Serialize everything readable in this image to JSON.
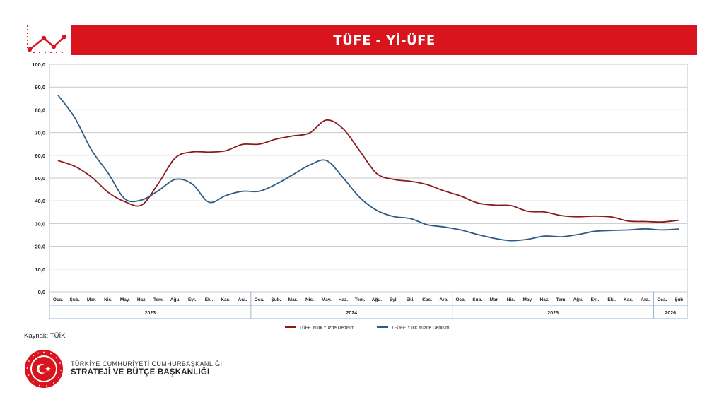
{
  "header": {
    "title": "TÜFE - Yİ-ÜFE"
  },
  "source": "Kaynak: TÜİK",
  "org": {
    "line1": "TÜRKİYE CUMHURİYETİ CUMHURBAŞKANLIĞI",
    "line2": "STRATEJİ VE BÜTÇE BAŞKANLIĞI",
    "seal_text": "T.C. CUMHURBAŞKANLIĞI STRATEJİ VE BÜTÇE BAŞKANLIĞI"
  },
  "colors": {
    "accent": "#d9141c",
    "tufe": "#8b1a1a",
    "yiufe": "#2e5b86",
    "grid": "#c8c8c8"
  },
  "chart_data": {
    "type": "line",
    "title": "",
    "xlabel": "",
    "ylabel": "",
    "ylim": [
      0,
      100
    ],
    "yticks": [
      "0,0",
      "10,0",
      "20,0",
      "30,0",
      "40,0",
      "50,0",
      "60,0",
      "70,0",
      "80,0",
      "90,0",
      "100,0"
    ],
    "grid": true,
    "legend_position": "bottom",
    "categories": [
      "Oca.",
      "Şub.",
      "Mar.",
      "Nis.",
      "May.",
      "Haz.",
      "Tem.",
      "Ağu.",
      "Eyl.",
      "Eki.",
      "Kas.",
      "Ara.",
      "Oca.",
      "Şub.",
      "Mar.",
      "Nis.",
      "May.",
      "Haz.",
      "Tem.",
      "Ağu.",
      "Eyl.",
      "Eki.",
      "Kas.",
      "Ara.",
      "Oca.",
      "Şub.",
      "Mar.",
      "Nis.",
      "May.",
      "Haz.",
      "Tem.",
      "Ağu.",
      "Eyl.",
      "Eki.",
      "Kas.",
      "Ara.",
      "Oca.",
      "Şub"
    ],
    "years": [
      {
        "label": "2023",
        "start": 0,
        "count": 12
      },
      {
        "label": "2024",
        "start": 12,
        "count": 12
      },
      {
        "label": "2025",
        "start": 24,
        "count": 12
      },
      {
        "label": "2026",
        "start": 36,
        "count": 2
      }
    ],
    "series": [
      {
        "name": "TÜFE Yıllık Yüzde Değişim",
        "values": [
          57.7,
          55.2,
          50.5,
          43.7,
          39.6,
          38.2,
          47.8,
          58.9,
          61.5,
          61.4,
          62.0,
          64.8,
          64.9,
          67.1,
          68.5,
          69.8,
          75.5,
          71.6,
          61.8,
          52.0,
          49.4,
          48.6,
          47.1,
          44.4,
          42.1,
          39.1,
          38.1,
          37.9,
          35.4,
          35.1,
          33.5,
          33.0,
          33.3,
          32.9,
          31.1,
          30.9,
          30.7,
          31.5
        ]
      },
      {
        "name": "Yİ-ÜFE Yıllık Yüzde Değişim",
        "values": [
          86.5,
          76.6,
          62.4,
          52.1,
          40.8,
          40.4,
          44.5,
          49.4,
          47.4,
          39.4,
          42.3,
          44.2,
          44.2,
          47.3,
          51.5,
          55.7,
          57.7,
          50.1,
          41.4,
          35.8,
          33.1,
          32.2,
          29.5,
          28.5,
          27.2,
          25.2,
          23.5,
          22.5,
          23.1,
          24.5,
          24.2,
          25.2,
          26.6,
          27.0,
          27.2,
          27.7,
          27.2,
          27.6
        ]
      }
    ]
  }
}
